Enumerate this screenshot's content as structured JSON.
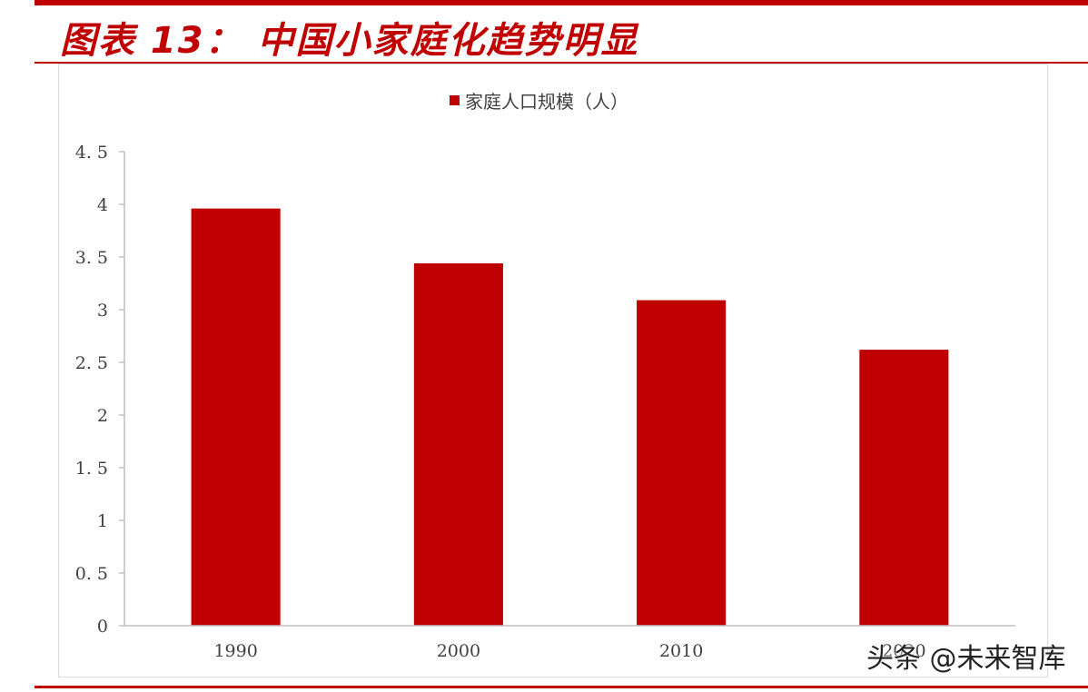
{
  "header": {
    "title": "图表 13： 中国小家庭化趋势明显"
  },
  "colors": {
    "accent": "#c00000",
    "axis": "#bfbfbf",
    "text": "#404040"
  },
  "watermark": "头条 @未来智库",
  "chart_data": {
    "type": "bar",
    "title": "",
    "legend": {
      "entries": [
        "家庭人口规模（人）"
      ],
      "position": "top-center"
    },
    "categories": [
      "1990",
      "2000",
      "2010",
      "2020"
    ],
    "series": [
      {
        "name": "家庭人口规模（人）",
        "values": [
          3.96,
          3.44,
          3.09,
          2.62
        ],
        "color": "#c00000"
      }
    ],
    "yticks": [
      "0",
      "0. 5",
      "1",
      "1. 5",
      "2",
      "2. 5",
      "3",
      "3. 5",
      "4",
      "4. 5"
    ],
    "ylim": [
      0,
      4.5
    ],
    "xlabel": "",
    "ylabel": "",
    "grid": false
  }
}
